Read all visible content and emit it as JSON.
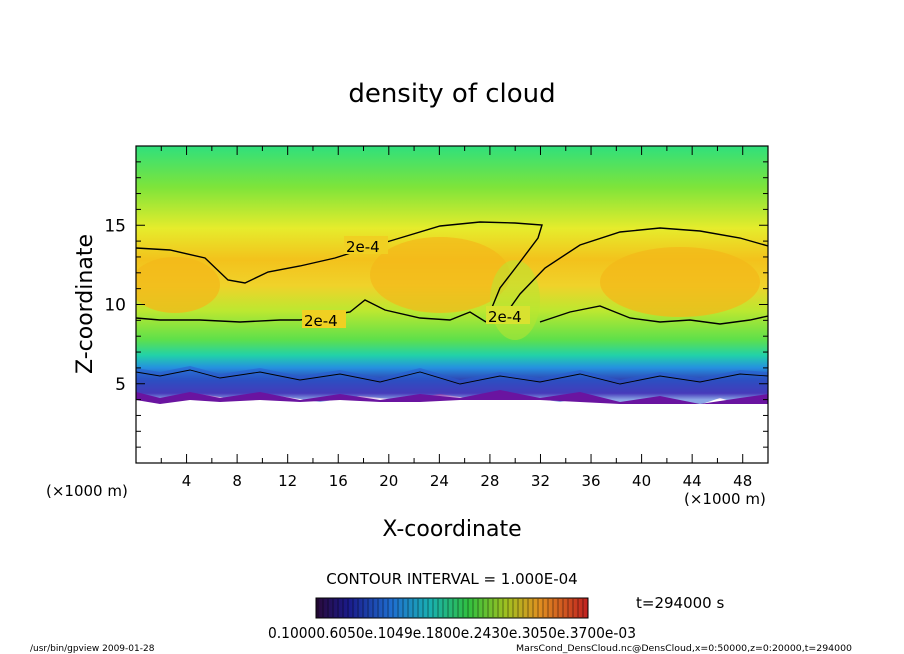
{
  "chart_data": {
    "type": "heatmap",
    "title": "density of cloud",
    "xlabel": "X-coordinate",
    "ylabel": "Z-coordinate",
    "x_unit": "(×1000 m)",
    "z_unit": "(×1000 m)",
    "xlim": [
      0,
      50
    ],
    "ylim": [
      0,
      20
    ],
    "xticks": [
      "4",
      "8",
      "12",
      "16",
      "20",
      "24",
      "28",
      "32",
      "36",
      "40",
      "44",
      "48"
    ],
    "yticks": [
      "5",
      "10",
      "15"
    ],
    "contour_interval_text": "CONTOUR INTERVAL = 1.000E-04",
    "contour_levels": [
      {
        "value": "2e-4",
        "label": "2e-4"
      }
    ],
    "contour_label_text": "2e-4",
    "time_text": "t=294000 s",
    "colorbar_labels_text": "0.10000.6050e.1049e.1800e.2430e.3050e.3700e-03",
    "colormap": [
      "#5a0a8a",
      "#2a2aa8",
      "#1f6fd0",
      "#19c0c8",
      "#28e070",
      "#8ee02a",
      "#e6e62a",
      "#f5b40f",
      "#f07020",
      "#d83030"
    ],
    "field_description_values": {
      "cloud_base_z": 5.8,
      "lower_contour_z": 9.1,
      "upper_contour_z_range": [
        12.5,
        15.0
      ]
    },
    "footer_left": "/usr/bin/gpview   2009-01-28",
    "footer_right": "MarsCond_DensCloud.nc@DensCloud,x=0:50000,z=0:20000,t=294000"
  }
}
